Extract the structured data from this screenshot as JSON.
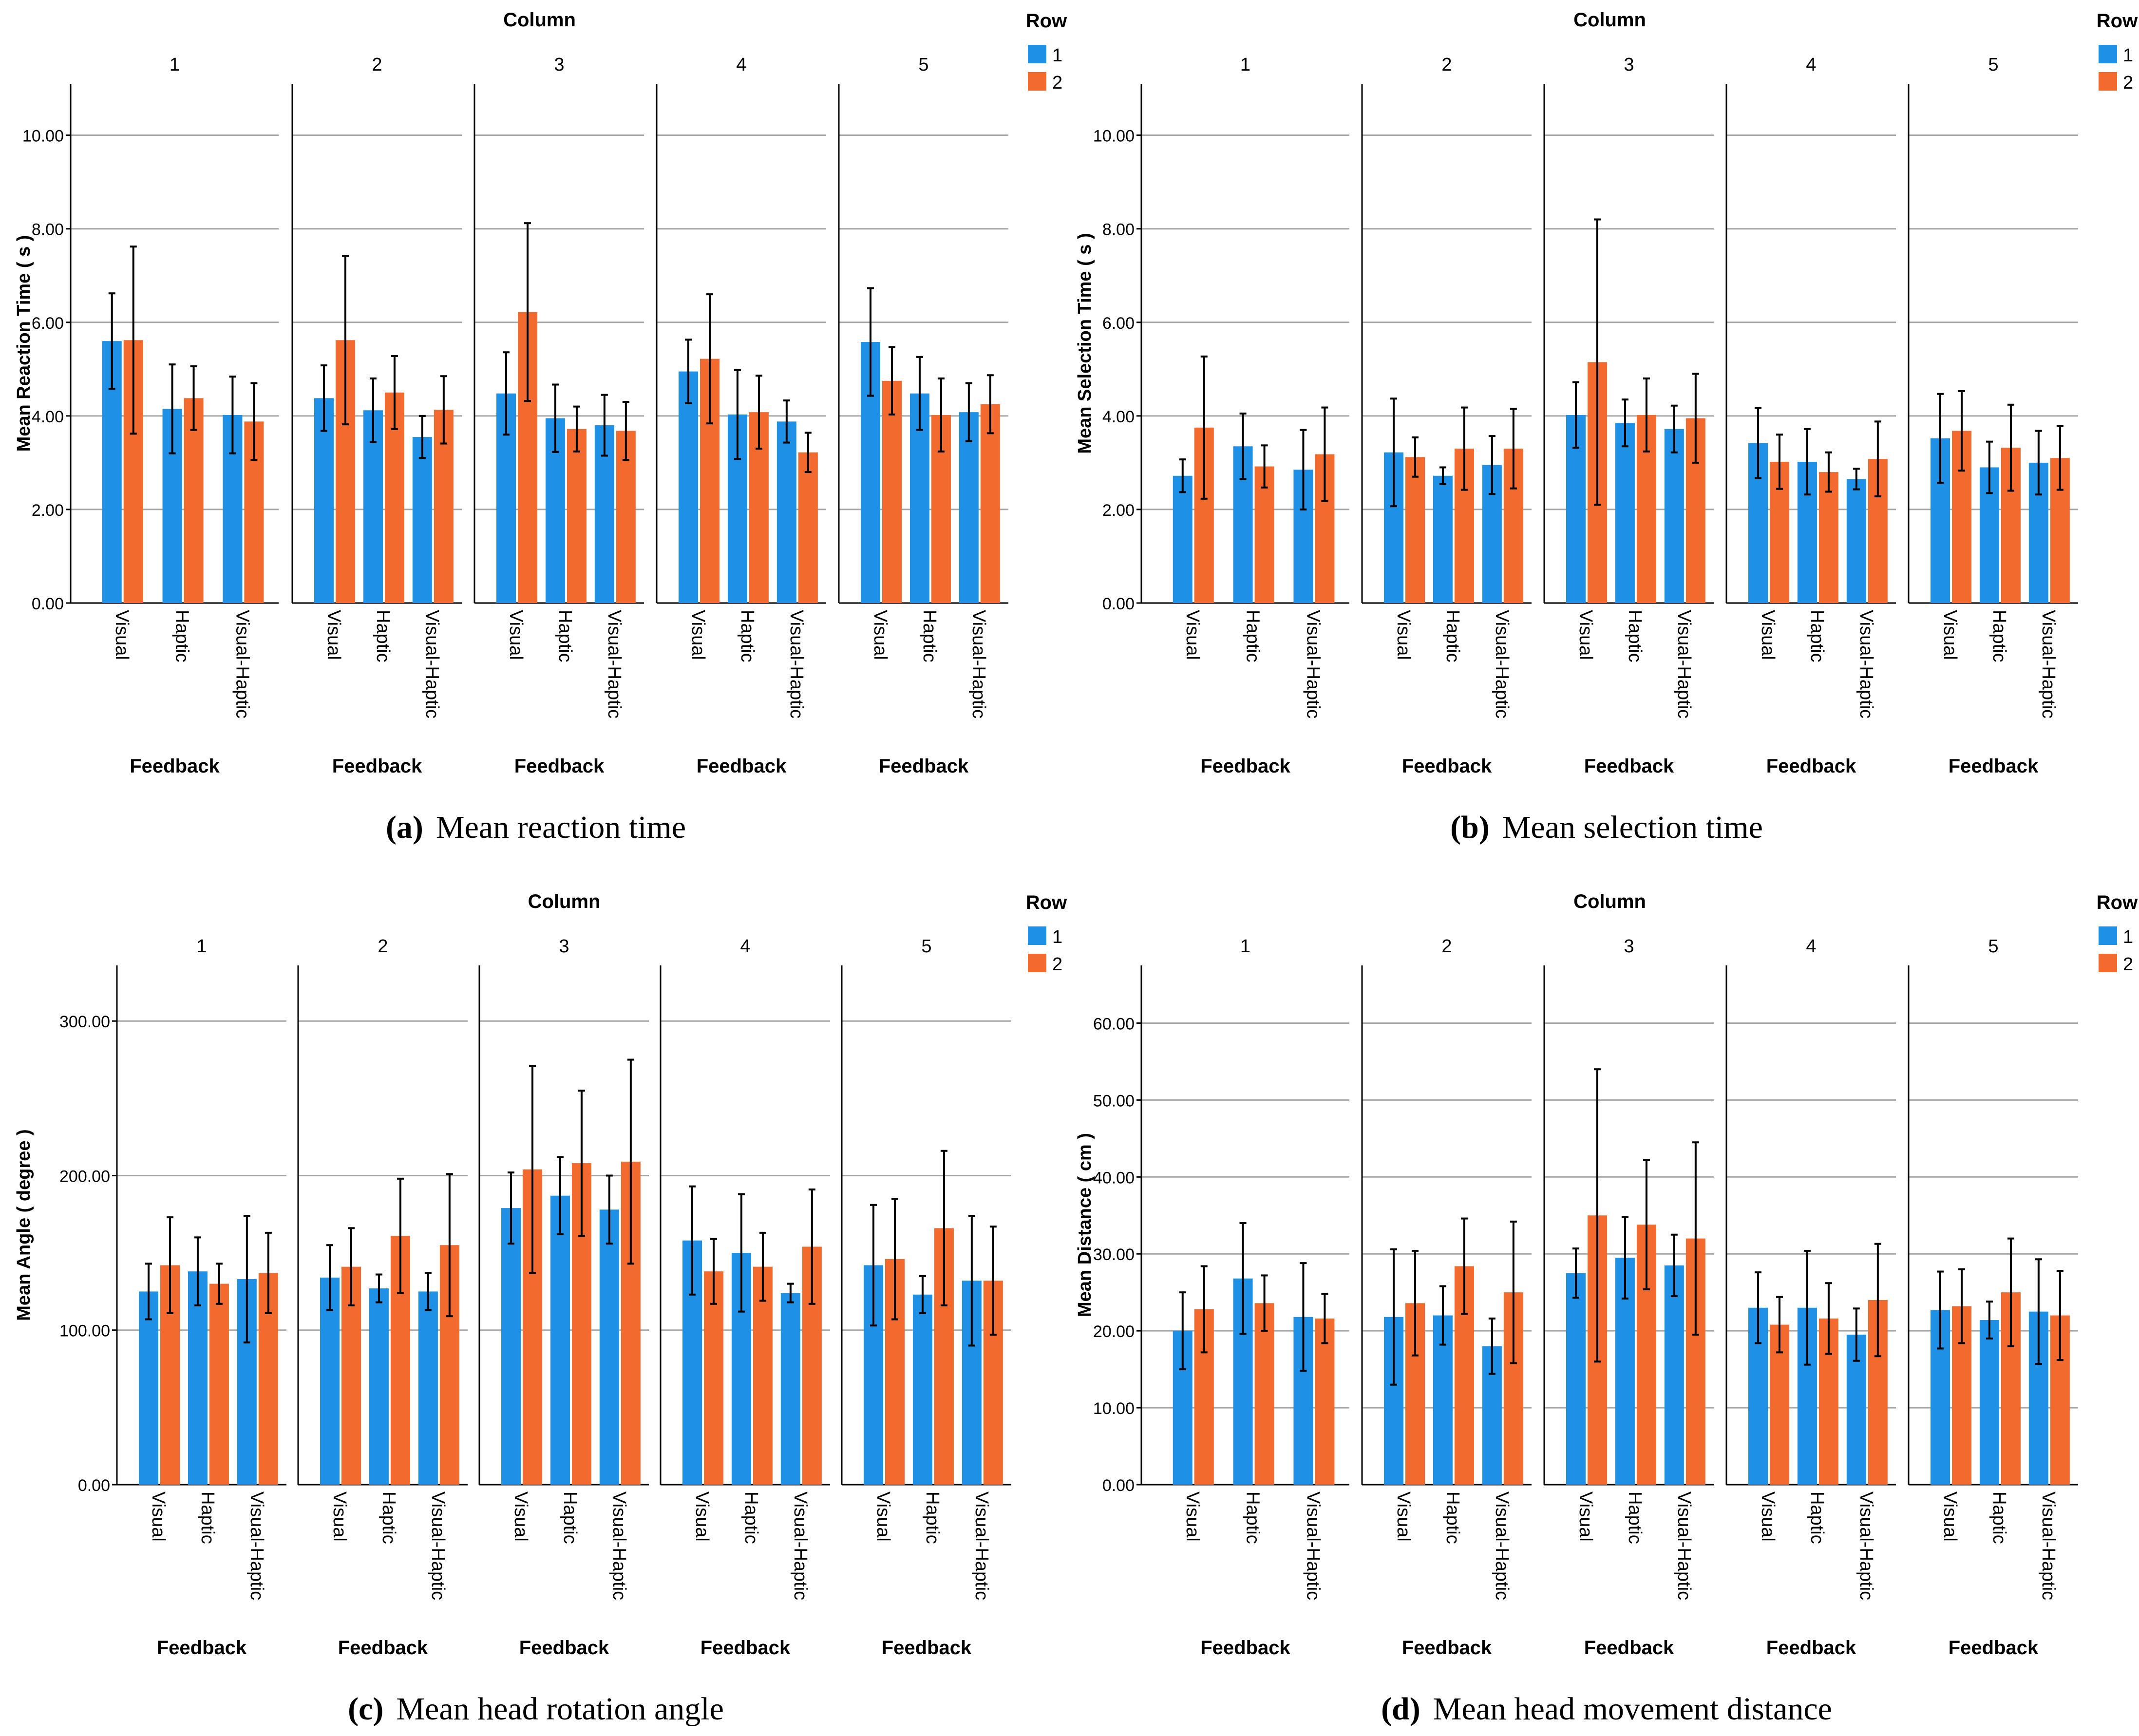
{
  "figure": {
    "colors": {
      "row1": "#1e90e6",
      "row2": "#f26a2e",
      "grid": "#a6a6a6",
      "axis": "#000000"
    },
    "column_title": "Column",
    "legend_title": "Row",
    "legend_labels": [
      "1",
      "2"
    ],
    "x_title": "Feedback"
  },
  "chart_data": [
    {
      "id": "a",
      "type": "bar",
      "caption_letter": "(a)",
      "caption_text": "Mean reaction time",
      "ylabel": "Mean Reaction Time ( s )",
      "ylim": [
        0,
        11.1
      ],
      "yticks": [
        "0.00",
        "2.00",
        "4.00",
        "6.00",
        "8.00",
        "10.00"
      ],
      "ytick_values": [
        0,
        2,
        4,
        6,
        8,
        10
      ],
      "panels": [
        "1",
        "2",
        "3",
        "4",
        "5"
      ],
      "categories": [
        "Visual",
        "Haptic",
        "Visual-Haptic"
      ],
      "series": [
        {
          "name": "1",
          "values": [
            [
              5.6,
              4.15,
              4.02
            ],
            [
              4.38,
              4.12,
              3.55
            ],
            [
              4.48,
              3.95,
              3.8
            ],
            [
              4.95,
              4.03,
              3.88
            ],
            [
              5.58,
              4.48,
              4.08
            ]
          ],
          "errors": [
            [
              1.02,
              0.95,
              0.82
            ],
            [
              0.7,
              0.68,
              0.45
            ],
            [
              0.88,
              0.72,
              0.65
            ],
            [
              0.68,
              0.95,
              0.45
            ],
            [
              1.15,
              0.78,
              0.62
            ]
          ]
        },
        {
          "name": "2",
          "values": [
            [
              5.62,
              4.38,
              3.88
            ],
            [
              5.62,
              4.5,
              4.13
            ],
            [
              6.22,
              3.72,
              3.68
            ],
            [
              5.22,
              4.08,
              3.22
            ],
            [
              4.75,
              4.02,
              4.25
            ]
          ],
          "errors": [
            [
              2.0,
              0.68,
              0.82
            ],
            [
              1.8,
              0.78,
              0.72
            ],
            [
              1.9,
              0.48,
              0.62
            ],
            [
              1.38,
              0.78,
              0.42
            ],
            [
              0.72,
              0.78,
              0.62
            ]
          ]
        }
      ]
    },
    {
      "id": "b",
      "type": "bar",
      "caption_letter": "(b)",
      "caption_text": "Mean selection time",
      "ylabel": "Mean Selection Time ( s )",
      "ylim": [
        0,
        11.1
      ],
      "yticks": [
        "0.00",
        "2.00",
        "4.00",
        "6.00",
        "8.00",
        "10.00"
      ],
      "ytick_values": [
        0,
        2,
        4,
        6,
        8,
        10
      ],
      "panels": [
        "1",
        "2",
        "3",
        "4",
        "5"
      ],
      "categories": [
        "Visual",
        "Haptic",
        "Visual-Haptic"
      ],
      "series": [
        {
          "name": "1",
          "values": [
            [
              2.72,
              3.35,
              2.85
            ],
            [
              3.22,
              2.72,
              2.95
            ],
            [
              4.02,
              3.85,
              3.72
            ],
            [
              3.42,
              3.02,
              2.65
            ],
            [
              3.52,
              2.9,
              3.0
            ]
          ],
          "errors": [
            [
              0.35,
              0.7,
              0.85
            ],
            [
              1.15,
              0.18,
              0.62
            ],
            [
              0.7,
              0.5,
              0.5
            ],
            [
              0.75,
              0.7,
              0.22
            ],
            [
              0.95,
              0.55,
              0.68
            ]
          ]
        },
        {
          "name": "2",
          "values": [
            [
              3.75,
              2.92,
              3.18
            ],
            [
              3.12,
              3.3,
              3.3
            ],
            [
              5.15,
              4.02,
              3.95
            ],
            [
              3.02,
              2.8,
              3.08
            ],
            [
              3.68,
              3.32,
              3.1
            ]
          ],
          "errors": [
            [
              1.52,
              0.45,
              1.0
            ],
            [
              0.42,
              0.88,
              0.85
            ],
            [
              3.05,
              0.78,
              0.95
            ],
            [
              0.58,
              0.42,
              0.8
            ],
            [
              0.85,
              0.92,
              0.68
            ]
          ]
        }
      ]
    },
    {
      "id": "c",
      "type": "bar",
      "caption_letter": "(c)",
      "caption_text": "Mean head rotation angle",
      "ylabel": "Mean Angle ( degree )",
      "ylim": [
        0,
        336
      ],
      "yticks": [
        "0.00",
        "100.00",
        "200.00",
        "300.00"
      ],
      "ytick_values": [
        0,
        100,
        200,
        300
      ],
      "panels": [
        "1",
        "2",
        "3",
        "4",
        "5"
      ],
      "categories": [
        "Visual",
        "Haptic",
        "Visual-Haptic"
      ],
      "series": [
        {
          "name": "1",
          "values": [
            [
              125,
              138,
              133
            ],
            [
              134,
              127,
              125
            ],
            [
              179,
              187,
              178
            ],
            [
              158,
              150,
              124
            ],
            [
              142,
              123,
              132
            ]
          ],
          "errors": [
            [
              18,
              22,
              41
            ],
            [
              21,
              9,
              12
            ],
            [
              23,
              25,
              22
            ],
            [
              35,
              38,
              6
            ],
            [
              39,
              12,
              42
            ]
          ]
        },
        {
          "name": "2",
          "values": [
            [
              142,
              130,
              137
            ],
            [
              141,
              161,
              155
            ],
            [
              204,
              208,
              209
            ],
            [
              138,
              141,
              154
            ],
            [
              146,
              166,
              132
            ]
          ],
          "errors": [
            [
              31,
              13,
              26
            ],
            [
              25,
              37,
              46
            ],
            [
              67,
              47,
              66
            ],
            [
              21,
              22,
              37
            ],
            [
              39,
              50,
              35
            ]
          ]
        }
      ]
    },
    {
      "id": "d",
      "type": "bar",
      "caption_letter": "(d)",
      "caption_text": "Mean head movement distance",
      "ylabel": "Mean Distance ( cm )",
      "ylim": [
        0,
        67.5
      ],
      "yticks": [
        "0.00",
        "10.00",
        "20.00",
        "30.00",
        "40.00",
        "50.00",
        "60.00"
      ],
      "ytick_values": [
        0,
        10,
        20,
        30,
        40,
        50,
        60
      ],
      "panels": [
        "1",
        "2",
        "3",
        "4",
        "5"
      ],
      "categories": [
        "Visual",
        "Haptic",
        "Visual-Haptic"
      ],
      "series": [
        {
          "name": "1",
          "values": [
            [
              20.0,
              26.8,
              21.8
            ],
            [
              21.8,
              22.0,
              18.0
            ],
            [
              27.5,
              29.5,
              28.5
            ],
            [
              23.0,
              23.0,
              19.5
            ],
            [
              22.7,
              21.4,
              22.5
            ]
          ],
          "errors": [
            [
              5.0,
              7.2,
              7.0
            ],
            [
              8.8,
              3.8,
              3.6
            ],
            [
              3.2,
              5.3,
              4.0
            ],
            [
              4.6,
              7.4,
              3.4
            ],
            [
              5.0,
              2.4,
              6.8
            ]
          ]
        },
        {
          "name": "2",
          "values": [
            [
              22.8,
              23.6,
              21.6
            ],
            [
              23.6,
              28.4,
              25.0
            ],
            [
              35.0,
              33.8,
              32.0
            ],
            [
              20.8,
              21.6,
              24.0
            ],
            [
              23.2,
              25.0,
              22.0
            ]
          ],
          "errors": [
            [
              5.6,
              3.6,
              3.2
            ],
            [
              6.8,
              6.2,
              9.2
            ],
            [
              19.0,
              8.4,
              12.5
            ],
            [
              3.6,
              4.6,
              7.3
            ],
            [
              4.8,
              7.0,
              5.8
            ]
          ]
        }
      ]
    }
  ]
}
